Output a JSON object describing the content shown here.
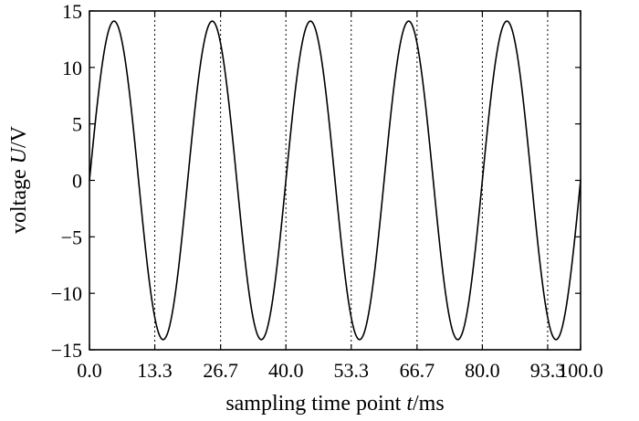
{
  "chart_data": {
    "type": "line",
    "title": "",
    "xlabel": {
      "prefix": "sampling time point ",
      "var": "t",
      "suffix": "/ms"
    },
    "ylabel": {
      "prefix": "voltage ",
      "var": "U",
      "suffix": "/V"
    },
    "xlim": [
      0,
      100
    ],
    "ylim": [
      -15,
      15
    ],
    "x_ticks": [
      0.0,
      13.3,
      26.7,
      40.0,
      53.3,
      66.7,
      80.0,
      93.3,
      100.0
    ],
    "x_tick_labels": [
      "0.0",
      "13.3",
      "26.7",
      "40.0",
      "53.3",
      "66.7",
      "80.0",
      "93.3",
      "100.0"
    ],
    "y_ticks": [
      15,
      10,
      5,
      0,
      -5,
      -10,
      -15
    ],
    "y_tick_labels": [
      "15",
      "10",
      "5",
      "0",
      "−5",
      "−10",
      "−15"
    ],
    "vertical_gridlines_dotted_at": [
      13.3,
      26.7,
      40.0,
      53.3,
      66.7,
      80.0,
      93.3
    ],
    "series": [
      {
        "amplitude": 14.1,
        "frequency_cycles": 5,
        "points": [
          [
            0,
            0
          ],
          [
            5,
            14.1
          ],
          [
            10,
            0
          ],
          [
            15,
            -14.1
          ],
          [
            20,
            0
          ],
          [
            25,
            14.1
          ],
          [
            30,
            0
          ],
          [
            35,
            -14.1
          ],
          [
            40,
            0
          ],
          [
            45,
            14.1
          ],
          [
            50,
            0
          ],
          [
            55,
            -14.1
          ],
          [
            60,
            0
          ],
          [
            65,
            14.1
          ],
          [
            70,
            0
          ],
          [
            75,
            -14.1
          ],
          [
            80,
            0
          ],
          [
            85,
            14.1
          ],
          [
            90,
            0
          ],
          [
            95,
            -14.1
          ],
          [
            100,
            0
          ]
        ]
      }
    ]
  }
}
